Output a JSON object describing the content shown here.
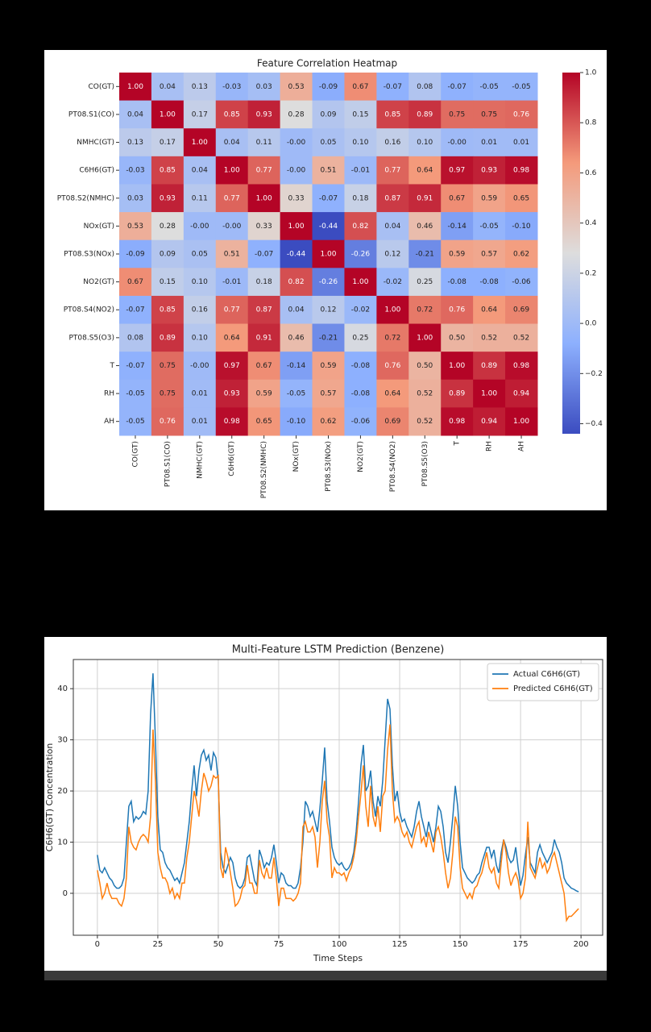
{
  "chart_data": [
    {
      "type": "heatmap",
      "title": "Feature Correlation Heatmap",
      "categories": [
        "CO(GT)",
        "PT08.S1(CO)",
        "NMHC(GT)",
        "C6H6(GT)",
        "PT08.S2(NMHC)",
        "NOx(GT)",
        "PT08.S3(NOx)",
        "NO2(GT)",
        "PT08.S4(NO2)",
        "PT08.S5(O3)",
        "T",
        "RH",
        "AH"
      ],
      "values": [
        [
          1,
          0.04,
          0.13,
          -0.03,
          0.03,
          0.53,
          -0.09,
          0.67,
          -0.07,
          0.08,
          -0.07,
          -0.05,
          -0.05
        ],
        [
          0.04,
          1,
          0.17,
          0.85,
          0.93,
          0.28,
          0.09,
          0.15,
          0.85,
          0.89,
          0.75,
          0.75,
          0.76
        ],
        [
          0.13,
          0.17,
          1,
          0.04,
          0.11,
          0,
          0.05,
          0.1,
          0.16,
          0.1,
          0,
          0.01,
          0.01
        ],
        [
          -0.03,
          0.85,
          0.04,
          1,
          0.77,
          0,
          0.51,
          -0.01,
          0.77,
          0.64,
          0.97,
          0.93,
          0.98
        ],
        [
          0.03,
          0.93,
          0.11,
          0.77,
          1,
          0.33,
          -0.07,
          0.18,
          0.87,
          0.91,
          0.67,
          0.59,
          0.65
        ],
        [
          0.53,
          0.28,
          0,
          0,
          0.33,
          1,
          -0.44,
          0.82,
          0.04,
          0.46,
          -0.14,
          -0.05,
          -0.1
        ],
        [
          -0.09,
          0.09,
          0.05,
          0.51,
          -0.07,
          -0.44,
          1,
          -0.26,
          0.12,
          -0.21,
          0.59,
          0.57,
          0.62
        ],
        [
          0.67,
          0.15,
          0.1,
          -0.01,
          0.18,
          0.82,
          -0.26,
          1,
          -0.02,
          0.25,
          -0.08,
          -0.08,
          -0.06
        ],
        [
          -0.07,
          0.85,
          0.16,
          0.77,
          0.87,
          0.04,
          0.12,
          -0.02,
          1,
          0.72,
          0.76,
          0.64,
          0.69
        ],
        [
          0.08,
          0.89,
          0.1,
          0.64,
          0.91,
          0.46,
          -0.21,
          0.25,
          0.72,
          1,
          0.5,
          0.52,
          0.52
        ],
        [
          -0.07,
          0.75,
          0,
          0.97,
          0.67,
          -0.14,
          0.59,
          -0.08,
          0.76,
          0.5,
          1,
          0.89,
          0.98
        ],
        [
          -0.05,
          0.75,
          0.01,
          0.93,
          0.59,
          -0.05,
          0.57,
          -0.08,
          0.64,
          0.52,
          0.89,
          1,
          0.94
        ],
        [
          -0.05,
          0.76,
          0.01,
          0.98,
          0.65,
          -0.1,
          0.62,
          -0.06,
          0.69,
          0.52,
          0.98,
          0.94,
          1
        ]
      ],
      "value_labels": [
        [
          "1.00",
          "0.04",
          "0.13",
          "-0.03",
          "0.03",
          "0.53",
          "-0.09",
          "0.67",
          "-0.07",
          "0.08",
          "-0.07",
          "-0.05",
          "-0.05"
        ],
        [
          "0.04",
          "1.00",
          "0.17",
          "0.85",
          "0.93",
          "0.28",
          "0.09",
          "0.15",
          "0.85",
          "0.89",
          "0.75",
          "0.75",
          "0.76"
        ],
        [
          "0.13",
          "0.17",
          "1.00",
          "0.04",
          "0.11",
          "-0.00",
          "0.05",
          "0.10",
          "0.16",
          "0.10",
          "-0.00",
          "0.01",
          "0.01"
        ],
        [
          "-0.03",
          "0.85",
          "0.04",
          "1.00",
          "0.77",
          "-0.00",
          "0.51",
          "-0.01",
          "0.77",
          "0.64",
          "0.97",
          "0.93",
          "0.98"
        ],
        [
          "0.03",
          "0.93",
          "0.11",
          "0.77",
          "1.00",
          "0.33",
          "-0.07",
          "0.18",
          "0.87",
          "0.91",
          "0.67",
          "0.59",
          "0.65"
        ],
        [
          "0.53",
          "0.28",
          "-0.00",
          "-0.00",
          "0.33",
          "1.00",
          "-0.44",
          "0.82",
          "0.04",
          "0.46",
          "-0.14",
          "-0.05",
          "-0.10"
        ],
        [
          "-0.09",
          "0.09",
          "0.05",
          "0.51",
          "-0.07",
          "-0.44",
          "1.00",
          "-0.26",
          "0.12",
          "-0.21",
          "0.59",
          "0.57",
          "0.62"
        ],
        [
          "0.67",
          "0.15",
          "0.10",
          "-0.01",
          "0.18",
          "0.82",
          "-0.26",
          "1.00",
          "-0.02",
          "0.25",
          "-0.08",
          "-0.08",
          "-0.06"
        ],
        [
          "-0.07",
          "0.85",
          "0.16",
          "0.77",
          "0.87",
          "0.04",
          "0.12",
          "-0.02",
          "1.00",
          "0.72",
          "0.76",
          "0.64",
          "0.69"
        ],
        [
          "0.08",
          "0.89",
          "0.10",
          "0.64",
          "0.91",
          "0.46",
          "-0.21",
          "0.25",
          "0.72",
          "1.00",
          "0.50",
          "0.52",
          "0.52"
        ],
        [
          "-0.07",
          "0.75",
          "-0.00",
          "0.97",
          "0.67",
          "-0.14",
          "0.59",
          "-0.08",
          "0.76",
          "0.50",
          "1.00",
          "0.89",
          "0.98"
        ],
        [
          "-0.05",
          "0.75",
          "0.01",
          "0.93",
          "0.59",
          "-0.05",
          "0.57",
          "-0.08",
          "0.64",
          "0.52",
          "0.89",
          "1.00",
          "0.94"
        ],
        [
          "-0.05",
          "0.76",
          "0.01",
          "0.98",
          "0.65",
          "-0.10",
          "0.62",
          "-0.06",
          "0.69",
          "0.52",
          "0.98",
          "0.94",
          "1.00"
        ]
      ],
      "colorscale": [
        "#3b4cc0",
        "#8db0fe",
        "#dddddd",
        "#f49a7b",
        "#b40426"
      ],
      "clim": [
        -0.44,
        1
      ],
      "cticks": [
        {
          "value": 1,
          "label": "1.0"
        },
        {
          "value": 0.8,
          "label": "0.8"
        },
        {
          "value": 0.6,
          "label": "0.6"
        },
        {
          "value": 0.4,
          "label": "0.4"
        },
        {
          "value": 0.2,
          "label": "0.2"
        },
        {
          "value": 0,
          "label": "0.0"
        },
        {
          "value": -0.2,
          "label": "−0.2"
        },
        {
          "value": -0.4,
          "label": "−0.4"
        }
      ]
    },
    {
      "type": "line",
      "title": "Multi-Feature LSTM Prediction (Benzene)",
      "xlabel": "Time Steps",
      "ylabel": "C6H6(GT) Concentration",
      "x": [
        0,
        1,
        2,
        3,
        4,
        5,
        6,
        7,
        8,
        9,
        10,
        11,
        12,
        13,
        14,
        15,
        16,
        17,
        18,
        19,
        20,
        21,
        22,
        23,
        24,
        25,
        26,
        27,
        28,
        29,
        30,
        31,
        32,
        33,
        34,
        35,
        36,
        37,
        38,
        39,
        40,
        41,
        42,
        43,
        44,
        45,
        46,
        47,
        48,
        49,
        50,
        51,
        52,
        53,
        54,
        55,
        56,
        57,
        58,
        59,
        60,
        61,
        62,
        63,
        64,
        65,
        66,
        67,
        68,
        69,
        70,
        71,
        72,
        73,
        74,
        75,
        76,
        77,
        78,
        79,
        80,
        81,
        82,
        83,
        84,
        85,
        86,
        87,
        88,
        89,
        90,
        91,
        92,
        93,
        94,
        95,
        96,
        97,
        98,
        99,
        100,
        101,
        102,
        103,
        104,
        105,
        106,
        107,
        108,
        109,
        110,
        111,
        112,
        113,
        114,
        115,
        116,
        117,
        118,
        119,
        120,
        121,
        122,
        123,
        124,
        125,
        126,
        127,
        128,
        129,
        130,
        131,
        132,
        133,
        134,
        135,
        136,
        137,
        138,
        139,
        140,
        141,
        142,
        143,
        144,
        145,
        146,
        147,
        148,
        149,
        150,
        151,
        152,
        153,
        154,
        155,
        156,
        157,
        158,
        159,
        160,
        161,
        162,
        163,
        164,
        165,
        166,
        167,
        168,
        169,
        170,
        171,
        172,
        173,
        174,
        175,
        176,
        177,
        178,
        179,
        180,
        181,
        182,
        183,
        184,
        185,
        186,
        187,
        188,
        189,
        190,
        191,
        192,
        193,
        194,
        195,
        196,
        197,
        198,
        199
      ],
      "series": [
        {
          "name": "Actual C6H6(GT)",
          "color": "#1f77b4",
          "values": [
            7.5,
            4.5,
            4,
            5,
            4,
            3,
            2.5,
            1.5,
            1,
            1,
            1.5,
            3,
            10,
            17,
            18,
            14,
            15,
            14.5,
            15,
            16,
            15.5,
            20,
            35,
            43,
            30,
            15,
            8.5,
            8,
            6,
            5,
            4.5,
            3.5,
            2.5,
            3,
            2,
            4,
            6,
            10,
            14,
            20,
            25,
            19,
            24,
            27,
            28,
            26,
            27,
            24,
            27.5,
            26.5,
            22,
            8,
            5,
            4,
            5.5,
            7,
            6,
            3,
            1.5,
            1,
            1.5,
            3,
            7,
            7.5,
            5,
            2.5,
            1.5,
            8.5,
            7,
            5,
            6,
            5.5,
            7,
            9.5,
            6,
            2,
            4,
            3.5,
            2,
            1.5,
            1.5,
            1,
            1,
            2,
            5,
            10,
            18,
            17,
            15,
            16,
            14,
            12,
            16.5,
            22,
            28.5,
            18,
            14,
            9,
            7,
            6,
            5.5,
            6,
            5,
            4.5,
            5,
            6,
            8,
            12,
            18,
            25,
            29,
            20,
            21,
            24,
            18,
            15,
            19,
            17,
            22,
            30,
            38,
            36,
            25,
            18,
            20,
            16,
            14,
            14.5,
            13,
            12,
            11,
            13,
            16,
            18,
            15,
            13,
            11,
            14,
            12,
            10,
            13,
            17,
            16,
            13,
            8,
            6,
            10,
            15,
            21,
            17,
            10,
            5,
            4,
            3,
            2.5,
            2,
            2.5,
            3.5,
            4,
            6,
            7.5,
            9,
            9,
            7,
            8.5,
            5.5,
            4,
            8,
            10.5,
            9,
            7,
            6,
            6.5,
            9,
            5,
            1.5,
            3.5,
            7.5,
            11,
            6,
            5,
            4,
            8,
            9.5,
            8,
            7,
            6,
            7,
            8,
            10.5,
            9,
            8,
            6,
            3,
            2,
            1.5,
            1,
            0.8,
            0.5,
            0.3
          ]
        },
        {
          "name": "Predicted C6H6(GT)",
          "color": "#ff7f0e",
          "values": [
            4.5,
            2,
            -1,
            0,
            2,
            0,
            -1,
            -1,
            -1,
            -2,
            -2.5,
            -1,
            3,
            13,
            10,
            9,
            8.5,
            10,
            11,
            11.5,
            11,
            10,
            15,
            32,
            22,
            8,
            5,
            3,
            3,
            2,
            0,
            1,
            -1,
            0,
            -1,
            2,
            2,
            7,
            10,
            15,
            20,
            18,
            15,
            20,
            23.5,
            22,
            20,
            21,
            23,
            22.5,
            23,
            5,
            3,
            9,
            7,
            4,
            1,
            -2.5,
            -2,
            -1,
            1,
            1.5,
            5.5,
            2,
            2,
            0,
            0,
            6.5,
            4,
            3,
            5,
            3,
            3,
            7,
            3,
            -2.5,
            1,
            1,
            -1,
            -1,
            -1,
            -1.5,
            -1,
            0,
            2,
            13,
            14,
            12,
            12,
            13,
            11,
            5,
            10,
            18,
            22,
            14,
            11,
            3,
            5,
            4,
            4,
            3.5,
            4,
            2.5,
            4,
            5,
            7,
            10,
            15,
            19.5,
            25,
            17,
            13,
            21,
            15,
            13,
            17,
            12,
            19,
            20,
            28,
            33,
            20,
            14,
            15,
            14,
            12,
            11,
            12,
            10,
            9,
            11,
            13,
            14,
            10,
            11,
            9,
            12,
            10,
            8,
            12,
            13,
            11,
            8,
            4,
            1,
            3,
            8,
            15,
            13,
            5,
            1,
            0,
            -1,
            0,
            -1,
            1,
            1.5,
            3,
            4,
            6,
            8,
            5,
            4,
            5,
            2,
            1,
            6,
            10.5,
            8,
            4,
            1.5,
            3,
            4,
            2.5,
            -1,
            0,
            3,
            14,
            5,
            4,
            3,
            5,
            7,
            5,
            6,
            4,
            5,
            7,
            8,
            6,
            4,
            2,
            0,
            -5.3,
            -4.5,
            -4.5,
            -4,
            -3.5,
            -3
          ]
        }
      ],
      "xlim": [
        -9.95,
        208.95
      ],
      "ylim": [
        -8.2,
        45.7
      ],
      "xticks": [
        0,
        25,
        50,
        75,
        100,
        125,
        150,
        175,
        200
      ],
      "yticks": [
        0,
        10,
        20,
        30,
        40
      ],
      "grid": true,
      "legend": "upper right"
    }
  ]
}
